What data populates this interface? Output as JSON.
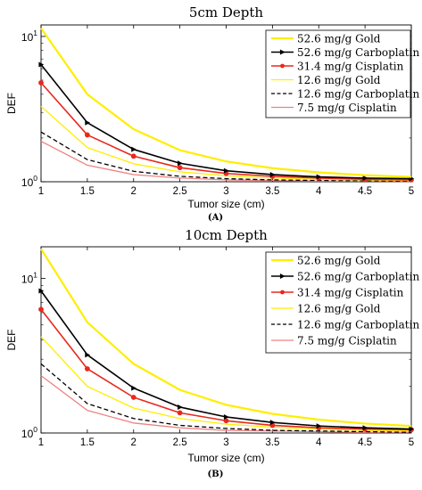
{
  "panels": [
    {
      "label": "(A)",
      "chart_data": {
        "type": "line",
        "title": "5cm Depth",
        "xlabel": "Tumor size (cm)",
        "ylabel": "DEF",
        "yscale": "log",
        "xlim": [
          1,
          5
        ],
        "ylim": [
          1,
          12
        ],
        "x": [
          1,
          1.5,
          2,
          2.5,
          3,
          3.5,
          4,
          4.5,
          5
        ],
        "xticks": [
          "1",
          "1.5",
          "2",
          "2.5",
          "3",
          "3.5",
          "4",
          "4.5",
          "5"
        ],
        "yticks": [
          {
            "value": 1,
            "base": "10",
            "exp": "0"
          },
          {
            "value": 10,
            "base": "10",
            "exp": "1"
          }
        ],
        "legend_position": "top-right",
        "series": [
          {
            "name": "52.6 mg/g Gold",
            "color": "#ffee00",
            "dash": "solid",
            "marker": "none",
            "width": 2.2,
            "values": [
              11.4,
              4.0,
              2.3,
              1.65,
              1.38,
              1.24,
              1.16,
              1.11,
              1.08
            ]
          },
          {
            "name": "52.6 mg/g Carboplatin",
            "color": "#000000",
            "dash": "solid",
            "marker": "triangle",
            "width": 1.6,
            "values": [
              6.4,
              2.55,
              1.67,
              1.34,
              1.19,
              1.12,
              1.08,
              1.06,
              1.05
            ]
          },
          {
            "name": "31.4 mg/g Cisplatin",
            "color": "#e8281e",
            "dash": "solid",
            "marker": "circle",
            "width": 1.6,
            "values": [
              4.8,
              2.1,
              1.5,
              1.25,
              1.14,
              1.09,
              1.06,
              1.04,
              1.03
            ]
          },
          {
            "name": "12.6 mg/g Gold",
            "color": "#ffee00",
            "dash": "solid",
            "marker": "none",
            "width": 1.3,
            "values": [
              3.3,
              1.72,
              1.33,
              1.17,
              1.1,
              1.06,
              1.04,
              1.03,
              1.02
            ]
          },
          {
            "name": "12.6 mg/g Carboplatin",
            "color": "#000000",
            "dash": "dashed",
            "marker": "none",
            "width": 1.3,
            "values": [
              2.2,
              1.42,
              1.18,
              1.09,
              1.05,
              1.03,
              1.02,
              1.015,
              1.01
            ]
          },
          {
            "name": "7.5 mg/g Cisplatin",
            "color": "#f08080",
            "dash": "solid",
            "marker": "none",
            "width": 1.3,
            "values": [
              1.9,
              1.3,
              1.12,
              1.06,
              1.03,
              1.02,
              1.01,
              1.01,
              1.005
            ]
          }
        ]
      }
    },
    {
      "label": "(B)",
      "chart_data": {
        "type": "line",
        "title": "10cm Depth",
        "xlabel": "Tumor size (cm)",
        "ylabel": "DEF",
        "yscale": "log",
        "xlim": [
          1,
          5
        ],
        "ylim": [
          1,
          16
        ],
        "x": [
          1,
          1.5,
          2,
          2.5,
          3,
          3.5,
          4,
          4.5,
          5
        ],
        "xticks": [
          "1",
          "1.5",
          "2",
          "2.5",
          "3",
          "3.5",
          "4",
          "4.5",
          "5"
        ],
        "yticks": [
          {
            "value": 1,
            "base": "10",
            "exp": "0"
          },
          {
            "value": 10,
            "base": "10",
            "exp": "1"
          }
        ],
        "legend_position": "top-right",
        "series": [
          {
            "name": "52.6 mg/g Gold",
            "color": "#ffee00",
            "dash": "solid",
            "marker": "none",
            "width": 2.2,
            "values": [
              15.5,
              5.2,
              2.8,
              1.9,
              1.52,
              1.33,
              1.22,
              1.15,
              1.11
            ]
          },
          {
            "name": "52.6 mg/g Carboplatin",
            "color": "#000000",
            "dash": "solid",
            "marker": "triangle",
            "width": 1.6,
            "values": [
              8.3,
              3.2,
              1.95,
              1.47,
              1.27,
              1.17,
              1.11,
              1.08,
              1.06
            ]
          },
          {
            "name": "31.4 mg/g Cisplatin",
            "color": "#e8281e",
            "dash": "solid",
            "marker": "circle",
            "width": 1.6,
            "values": [
              6.3,
              2.6,
              1.7,
              1.35,
              1.2,
              1.12,
              1.08,
              1.06,
              1.05
            ]
          },
          {
            "name": "12.6 mg/g Gold",
            "color": "#ffee00",
            "dash": "solid",
            "marker": "none",
            "width": 1.3,
            "values": [
              4.2,
              2.0,
              1.45,
              1.24,
              1.14,
              1.09,
              1.06,
              1.04,
              1.03
            ]
          },
          {
            "name": "12.6 mg/g Carboplatin",
            "color": "#000000",
            "dash": "dashed",
            "marker": "none",
            "width": 1.3,
            "values": [
              2.8,
              1.55,
              1.24,
              1.12,
              1.07,
              1.04,
              1.03,
              1.02,
              1.01
            ]
          },
          {
            "name": "7.5 mg/g Cisplatin",
            "color": "#f08080",
            "dash": "solid",
            "marker": "none",
            "width": 1.3,
            "values": [
              2.35,
              1.4,
              1.16,
              1.08,
              1.04,
              1.03,
              1.02,
              1.01,
              1.01
            ]
          }
        ]
      }
    }
  ]
}
